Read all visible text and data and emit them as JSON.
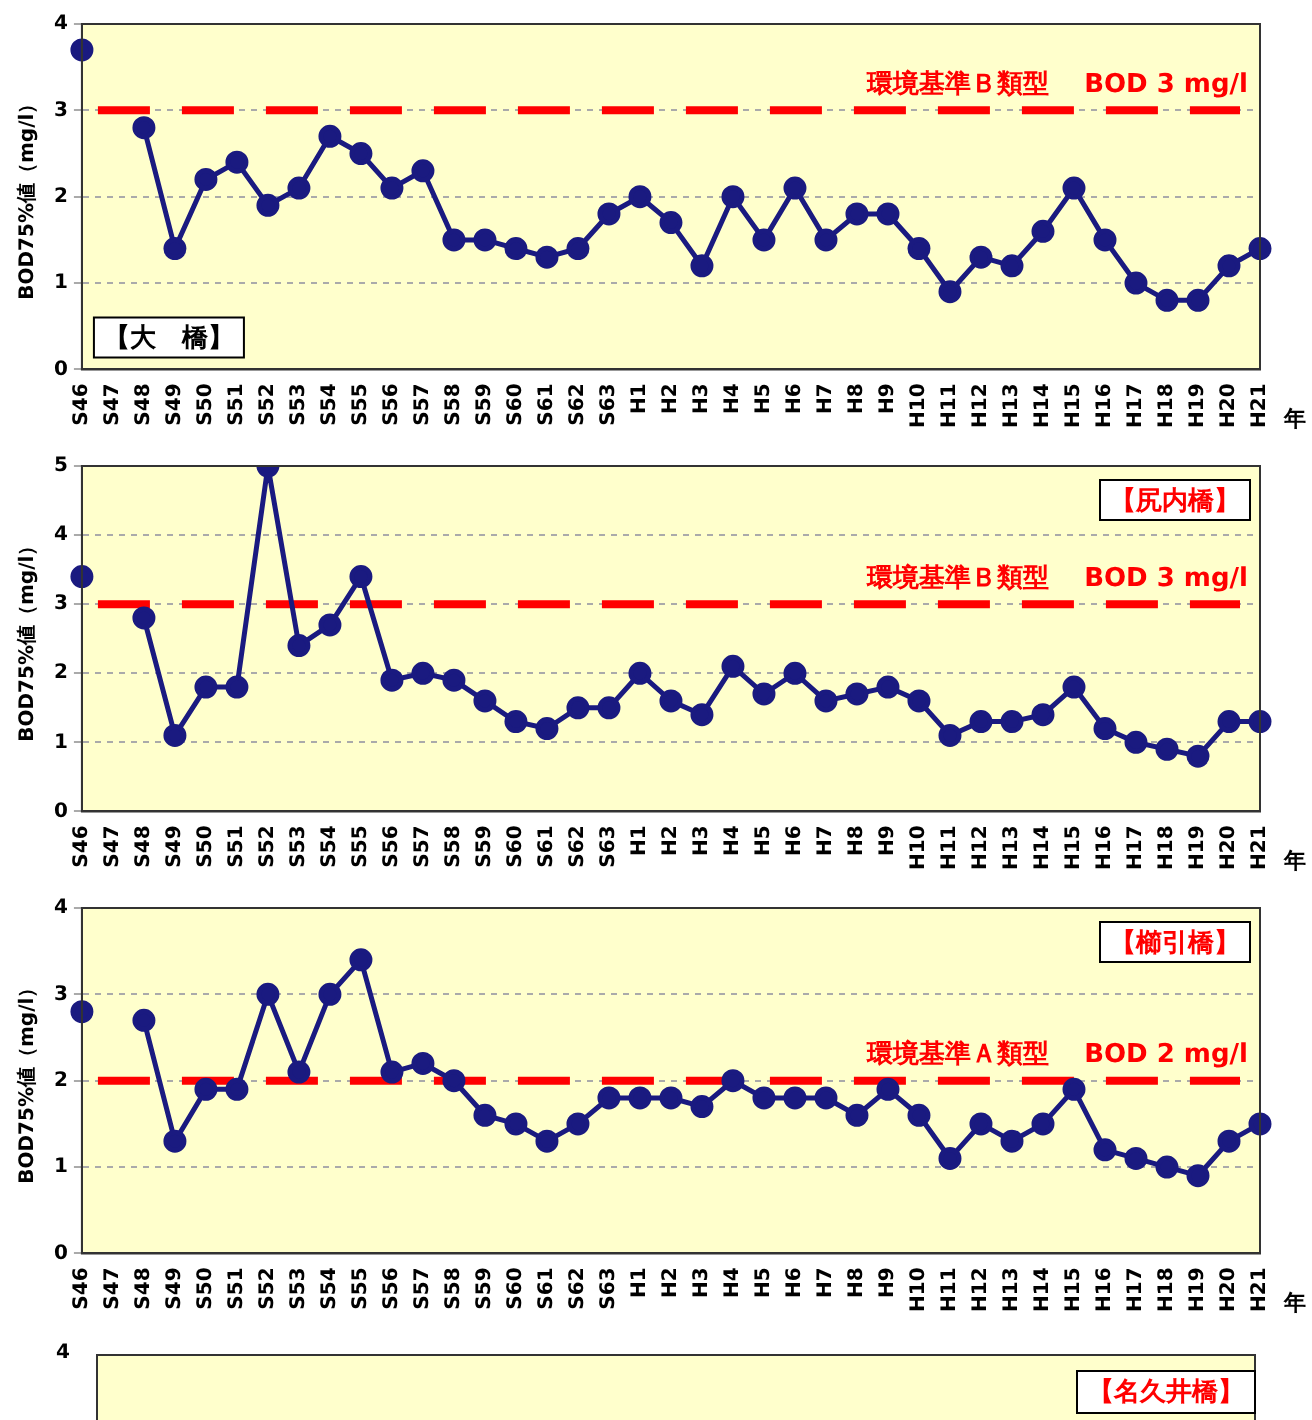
{
  "chart_data": [
    {
      "type": "line",
      "categories": [
        "S46",
        "S47",
        "S48",
        "S49",
        "S50",
        "S51",
        "S52",
        "S53",
        "S54",
        "S55",
        "S56",
        "S57",
        "S58",
        "S59",
        "S60",
        "S61",
        "S62",
        "S63",
        "H1",
        "H2",
        "H3",
        "H4",
        "H5",
        "H6",
        "H7",
        "H8",
        "H9",
        "H10",
        "H11",
        "H12",
        "H13",
        "H14",
        "H15",
        "H16",
        "H17",
        "H18",
        "H19",
        "H20",
        "H21"
      ],
      "xlabel": "年",
      "ylabel": "BOD75%値（mg/l）",
      "ylim": [
        0,
        4
      ],
      "yticks": [
        0,
        1,
        2,
        3,
        4
      ],
      "grid": "y",
      "legend": false,
      "marker": "circle",
      "line_style": "solid",
      "series": [
        {
          "color": "#1a1a80",
          "values": [
            3.7,
            null,
            2.8,
            1.4,
            2.2,
            2.4,
            1.9,
            2.1,
            2.7,
            2.5,
            2.1,
            2.3,
            1.5,
            1.5,
            1.4,
            1.3,
            1.4,
            1.8,
            2.0,
            1.7,
            1.2,
            2.0,
            1.5,
            2.1,
            1.5,
            1.8,
            1.8,
            1.4,
            0.9,
            1.3,
            1.2,
            1.6,
            2.1,
            1.5,
            1.0,
            0.8,
            0.8,
            1.2,
            1.4
          ]
        }
      ],
      "ref_lines": [
        {
          "axis": "y",
          "value": 3,
          "label": "環境基準Ｂ類型　 BOD 3 mg/l",
          "color": "#ff0000",
          "line_style": "dashed"
        }
      ],
      "annotations": [
        "【大　橋】"
      ]
    },
    {
      "type": "line",
      "categories": [
        "S46",
        "S47",
        "S48",
        "S49",
        "S50",
        "S51",
        "S52",
        "S53",
        "S54",
        "S55",
        "S56",
        "S57",
        "S58",
        "S59",
        "S60",
        "S61",
        "S62",
        "S63",
        "H1",
        "H2",
        "H3",
        "H4",
        "H5",
        "H6",
        "H7",
        "H8",
        "H9",
        "H10",
        "H11",
        "H12",
        "H13",
        "H14",
        "H15",
        "H16",
        "H17",
        "H18",
        "H19",
        "H20",
        "H21"
      ],
      "xlabel": "年",
      "ylabel": "BOD75%値（mg/l）",
      "ylim": [
        0,
        5
      ],
      "yticks": [
        0,
        1,
        2,
        3,
        4,
        5
      ],
      "grid": "y",
      "legend": false,
      "marker": "circle",
      "line_style": "solid",
      "series": [
        {
          "color": "#1a1a80",
          "values": [
            3.4,
            null,
            2.8,
            1.1,
            1.8,
            1.8,
            5.0,
            2.4,
            2.7,
            3.4,
            1.9,
            2.0,
            1.9,
            1.6,
            1.3,
            1.2,
            1.5,
            1.5,
            2.0,
            1.6,
            1.4,
            2.1,
            1.7,
            2.0,
            1.6,
            1.7,
            1.8,
            1.6,
            1.1,
            1.3,
            1.3,
            1.4,
            1.8,
            1.2,
            1.0,
            0.9,
            0.8,
            1.3,
            1.3
          ]
        }
      ],
      "ref_lines": [
        {
          "axis": "y",
          "value": 3,
          "label": "環境基準Ｂ類型　 BOD 3 mg/l",
          "color": "#ff0000",
          "line_style": "dashed"
        }
      ],
      "annotations": [
        "【尻内橋】"
      ]
    },
    {
      "type": "line",
      "categories": [
        "S46",
        "S47",
        "S48",
        "S49",
        "S50",
        "S51",
        "S52",
        "S53",
        "S54",
        "S55",
        "S56",
        "S57",
        "S58",
        "S59",
        "S60",
        "S61",
        "S62",
        "S63",
        "H1",
        "H2",
        "H3",
        "H4",
        "H5",
        "H6",
        "H7",
        "H8",
        "H9",
        "H10",
        "H11",
        "H12",
        "H13",
        "H14",
        "H15",
        "H16",
        "H17",
        "H18",
        "H19",
        "H20",
        "H21"
      ],
      "xlabel": "年",
      "ylabel": "BOD75%値（mg/l）",
      "ylim": [
        0,
        4
      ],
      "yticks": [
        0,
        1,
        2,
        3,
        4
      ],
      "grid": "y",
      "legend": false,
      "marker": "circle",
      "line_style": "solid",
      "series": [
        {
          "color": "#1a1a80",
          "values": [
            2.8,
            null,
            2.7,
            1.3,
            1.9,
            1.9,
            3.0,
            2.1,
            3.0,
            3.4,
            2.1,
            2.2,
            2.0,
            1.6,
            1.5,
            1.3,
            1.5,
            1.8,
            1.8,
            1.8,
            1.7,
            2.0,
            1.8,
            1.8,
            1.8,
            1.6,
            1.9,
            1.6,
            1.1,
            1.5,
            1.3,
            1.5,
            1.9,
            1.2,
            1.1,
            1.0,
            0.9,
            1.3,
            1.5
          ]
        }
      ],
      "ref_lines": [
        {
          "axis": "y",
          "value": 2,
          "label": "環境基準Ａ類型　 BOD 2 mg/l",
          "color": "#ff0000",
          "line_style": "dashed"
        }
      ],
      "annotations": [
        "【櫛引橋】"
      ]
    },
    {
      "type": "other",
      "annotations": [
        "4",
        "【名久井橋】"
      ]
    }
  ]
}
